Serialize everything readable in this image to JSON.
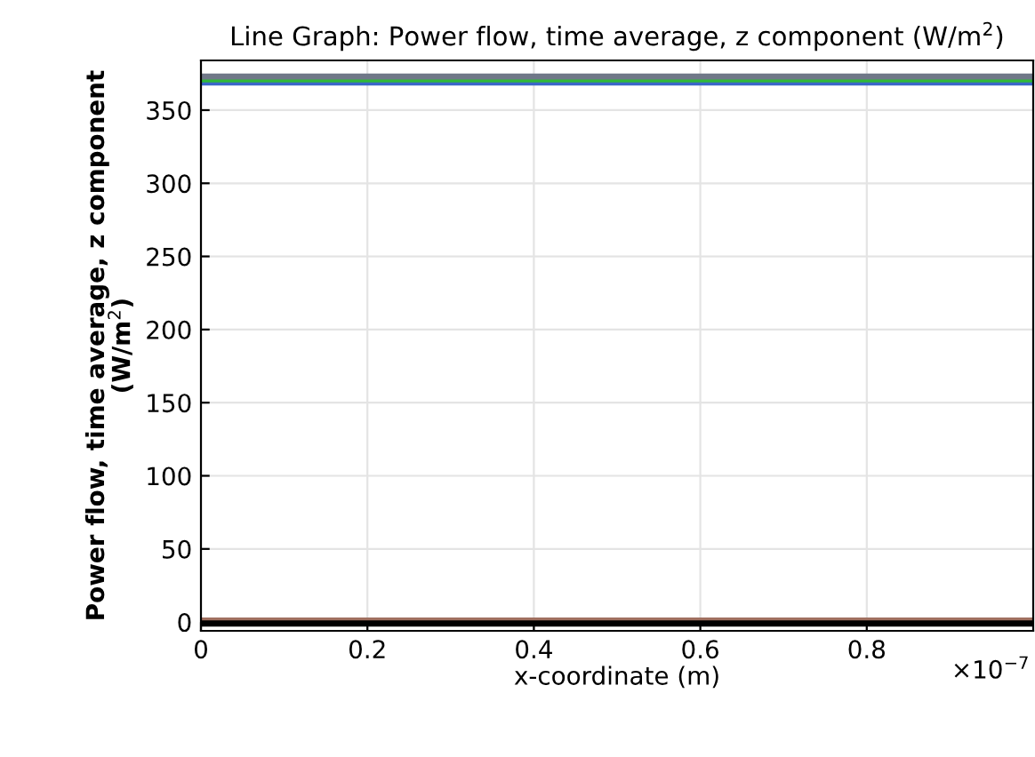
{
  "chart_data": {
    "type": "line",
    "title": "Line Graph: Power flow, time average, z component (W/m$^{2}$)",
    "xlabel": "x-coordinate (m)",
    "ylabel": "Power flow, time average, z component\n(W/m$^{2}$)",
    "x": [
      0,
      1
    ],
    "series": [
      {
        "color": "#3a66c8",
        "values": [
          369,
          369
        ]
      },
      {
        "color": "#30b838",
        "values": [
          371,
          371
        ]
      },
      {
        "color": "#707888",
        "values": [
          373,
          373
        ]
      },
      {
        "color": "#a07060",
        "values": [
          1,
          1
        ]
      },
      {
        "color": "#000000",
        "values": [
          -1,
          -1
        ]
      }
    ],
    "xlim": [
      0,
      1
    ],
    "xticks": [
      0,
      0.2,
      0.4,
      0.6,
      0.8
    ],
    "ylim": [
      -6,
      384
    ],
    "yticks": [
      0,
      50,
      100,
      150,
      200,
      250,
      300,
      350
    ],
    "annotations": [
      "×10$^{−7}$"
    ],
    "grid": true,
    "line_style": "solid",
    "marker": "none"
  }
}
